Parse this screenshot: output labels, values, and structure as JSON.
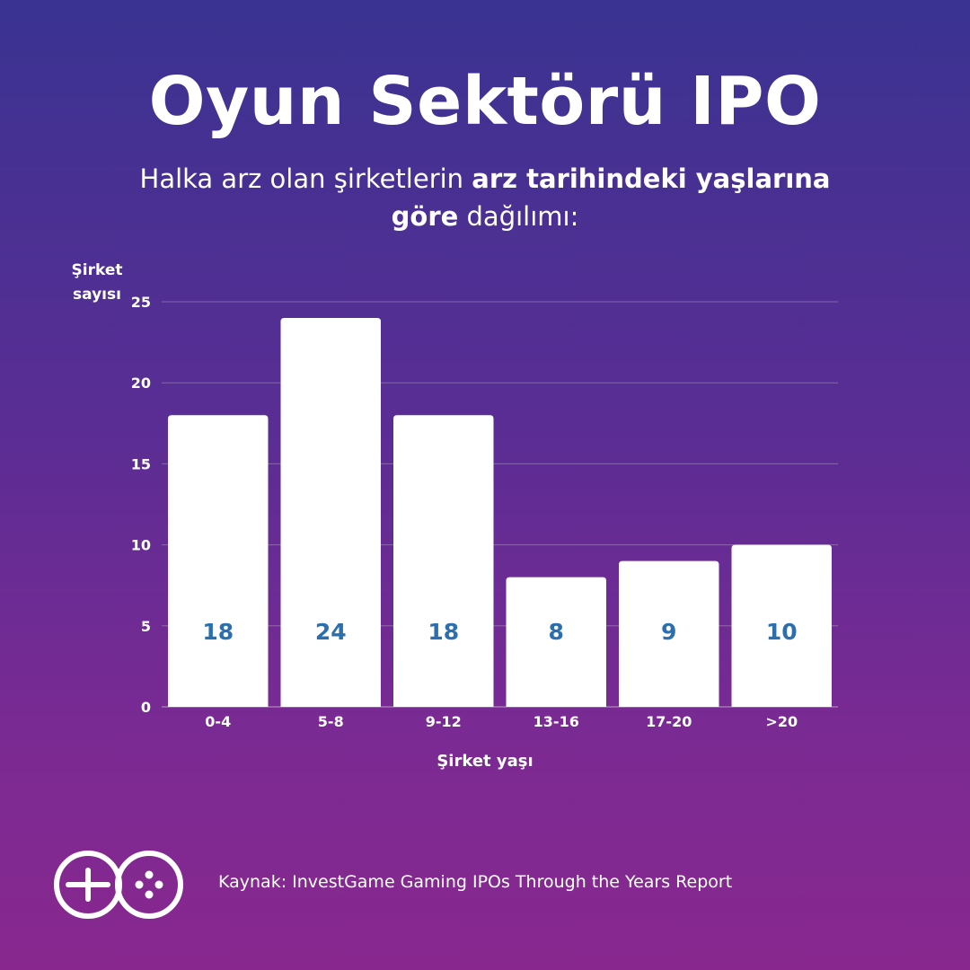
{
  "header": {
    "title": "Oyun Sektörü IPO",
    "subtitle_part1": "Halka arz olan şirketlerin ",
    "subtitle_bold1": "arz tarihindeki yaşlarına",
    "subtitle_bold2": "göre",
    "subtitle_part2": " dağılımı:"
  },
  "chart_data": {
    "type": "bar",
    "categories": [
      "0-4",
      "5-8",
      "9-12",
      "13-16",
      "17-20",
      ">20"
    ],
    "values": [
      18,
      24,
      18,
      8,
      9,
      10
    ],
    "ylabel_line1": "Şirket",
    "ylabel_line2": "sayısı",
    "xlabel": "Şirket yaşı",
    "ylim": [
      0,
      25
    ],
    "yticks": [
      0,
      5,
      10,
      15,
      20,
      25
    ],
    "grid": true,
    "bar_color": "#ffffff",
    "label_color": "#2b6fae"
  },
  "footer": {
    "logo_icon": "gamepad-go-logo-icon",
    "source": "Kaynak: InvestGame Gaming IPOs Through the Years Report"
  }
}
